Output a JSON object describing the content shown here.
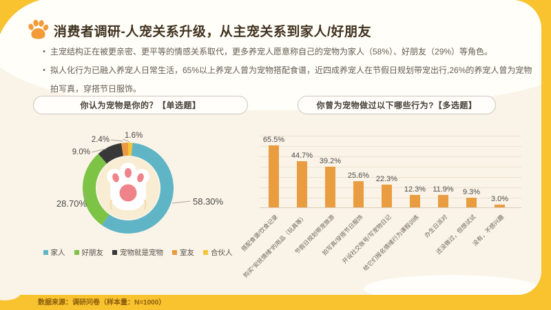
{
  "header": {
    "title": "消费者调研-人宠关系升级，从主宠关系到家人/好朋友",
    "bullets": [
      "主宠结构正在被更亲密、更平等的情感关系取代，更多养宠人愿意称自己的宠物为家人（58%）、好朋友（29%）等角色。",
      "拟人化行为已融入养宠人日常生活，65%以上养宠人曾为宠物搭配食谱，近四成养宠人在节假日规划带宠出行,26%的养宠人曾为宠物拍写真，穿搭节日服饰。"
    ]
  },
  "left_panel": {
    "pill": "你认为宠物是你的？【单选题】"
  },
  "right_panel": {
    "pill": "你曾为宠物做过以下哪些行为?【多选题】"
  },
  "footer": {
    "source": "数据来源：调研问卷（样本量：N=1000）"
  },
  "chart_data": [
    {
      "type": "pie",
      "donut": true,
      "title": "你认为宠物是你的？【单选题】",
      "labels": [
        "家人",
        "好朋友",
        "宠物就是宠物",
        "室友",
        "合伙人"
      ],
      "values": [
        58.3,
        28.7,
        9.0,
        2.4,
        1.6
      ],
      "value_labels": [
        "58.30%",
        "28.70%",
        "9.0%",
        "2.4%",
        "1.6%"
      ],
      "colors": [
        "#5FB5C5",
        "#7DC345",
        "#383838",
        "#EC9A3F",
        "#F3C53A"
      ],
      "legend_position": "bottom"
    },
    {
      "type": "bar",
      "title": "你曾为宠物做过以下哪些行为?【多选题】",
      "categories": [
        "搭配食谱/饮食记录",
        "购买“安抚情绪”的用品（玩具等）",
        "节假日规划带宠旅游",
        "拍写真/穿搭节日服饰",
        "开设社交账号/写宠物日记",
        "给它们报名情绪行为课程训练",
        "办生日派对",
        "还没做过，但想试试",
        "没有，不感兴趣"
      ],
      "values": [
        65.5,
        44.7,
        39.2,
        25.6,
        22.3,
        12.3,
        11.9,
        9.3,
        3.0
      ],
      "value_labels": [
        "65.5%",
        "44.7%",
        "39.2%",
        "25.6%",
        "22.3%",
        "12.3%",
        "11.9%",
        "9.3%",
        "3.0%"
      ],
      "bar_color": "#E99C40",
      "ylim": [
        0,
        70
      ],
      "grid": true
    }
  ]
}
